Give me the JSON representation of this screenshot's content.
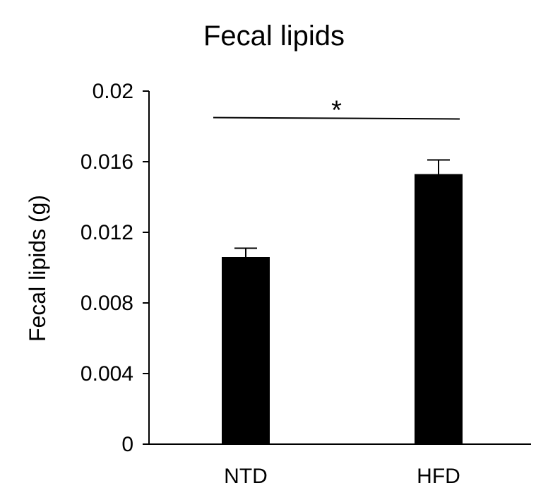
{
  "chart_data": {
    "type": "bar",
    "title": "Fecal lipids",
    "xlabel": "",
    "ylabel": "Fecal lipids (g)",
    "ylim": [
      0,
      0.02
    ],
    "yticks": [
      "0",
      "0.004",
      "0.008",
      "0.012",
      "0.016",
      "0.02"
    ],
    "yticks_values": [
      0,
      0.004,
      0.008,
      0.012,
      0.016,
      0.02
    ],
    "categories": [
      "NTD",
      "HFD"
    ],
    "values": [
      0.0106,
      0.0153
    ],
    "errors": [
      0.0005,
      0.0008
    ],
    "bar_color": "#000000",
    "grid": false,
    "legend": "none",
    "annotations": [
      {
        "text": "*",
        "between": [
          "NTD",
          "HFD"
        ],
        "y": 0.0185
      }
    ]
  }
}
